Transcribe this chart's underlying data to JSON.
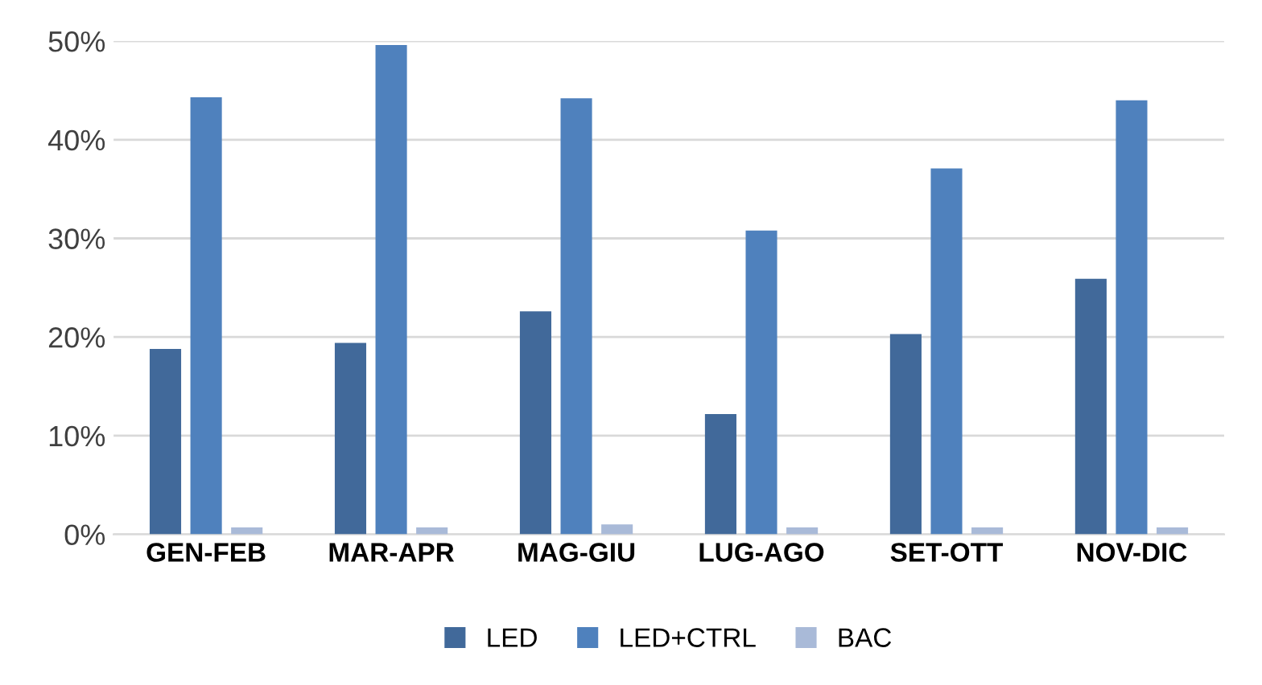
{
  "chart_data": {
    "type": "bar",
    "categories": [
      "GEN-FEB",
      "MAR-APR",
      "MAG-GIU",
      "LUG-AGO",
      "SET-OTT",
      "NOV-DIC"
    ],
    "series": [
      {
        "name": "LED",
        "color": "#41699a",
        "values": [
          18.8,
          19.4,
          22.6,
          12.2,
          20.3,
          25.9
        ]
      },
      {
        "name": "LED+CTRL",
        "color": "#4f81bd",
        "values": [
          44.3,
          49.6,
          44.2,
          30.8,
          37.1,
          44.0
        ]
      },
      {
        "name": "BAC",
        "color": "#a9bad8",
        "values": [
          0.7,
          0.7,
          1.0,
          0.7,
          0.7,
          0.7
        ]
      }
    ],
    "ylim": [
      0,
      50
    ],
    "yticks": [
      {
        "value": 0,
        "label": "0%"
      },
      {
        "value": 10,
        "label": "10%"
      },
      {
        "value": 20,
        "label": "20%"
      },
      {
        "value": 30,
        "label": "30%"
      },
      {
        "value": 40,
        "label": "40%"
      },
      {
        "value": 50,
        "label": "50%"
      }
    ],
    "grid": "y",
    "legend": "bottom"
  }
}
